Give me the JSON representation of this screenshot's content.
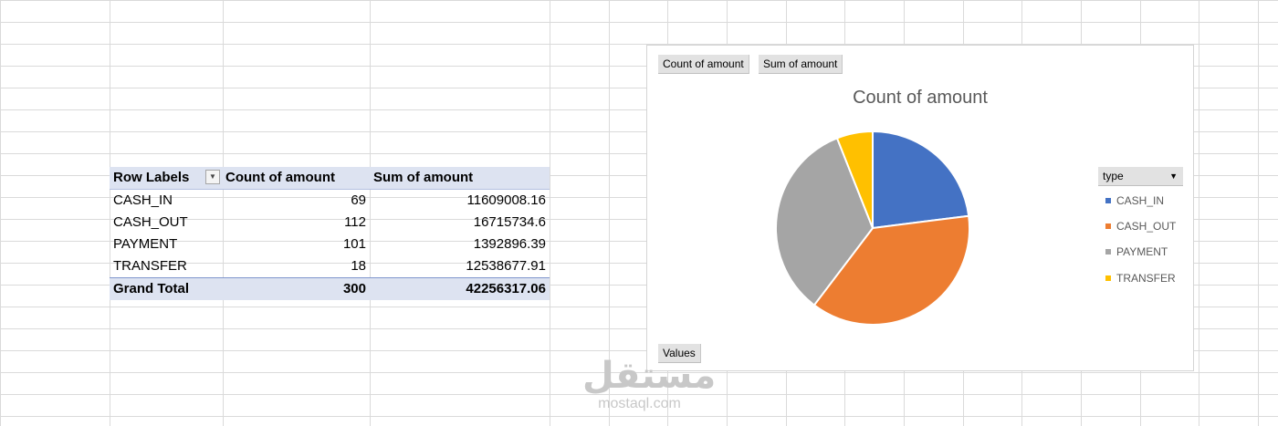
{
  "pivot": {
    "headers": [
      "Row Labels",
      "Count of amount",
      "Sum of amount"
    ],
    "rows": [
      {
        "label": "CASH_IN",
        "count": "69",
        "sum": "11609008.16"
      },
      {
        "label": "CASH_OUT",
        "count": "112",
        "sum": "16715734.6"
      },
      {
        "label": "PAYMENT",
        "count": "101",
        "sum": "1392896.39"
      },
      {
        "label": "TRANSFER",
        "count": "18",
        "sum": "12538677.91"
      }
    ],
    "total": {
      "label": "Grand Total",
      "count": "300",
      "sum": "42256317.06"
    }
  },
  "chart_buttons": {
    "value1": "Count of amount",
    "value2": "Sum of amount",
    "values": "Values"
  },
  "legend": {
    "field": "type"
  },
  "chart_data": {
    "type": "pie",
    "title": "Count of amount",
    "categories": [
      "CASH_IN",
      "CASH_OUT",
      "PAYMENT",
      "TRANSFER"
    ],
    "values": [
      69,
      112,
      101,
      18
    ],
    "colors": [
      "#4472c4",
      "#ed7d31",
      "#a5a5a5",
      "#ffc000"
    ],
    "legend": "right"
  },
  "watermark": {
    "arabic": "مستقل",
    "latin": "mostaql.com"
  }
}
